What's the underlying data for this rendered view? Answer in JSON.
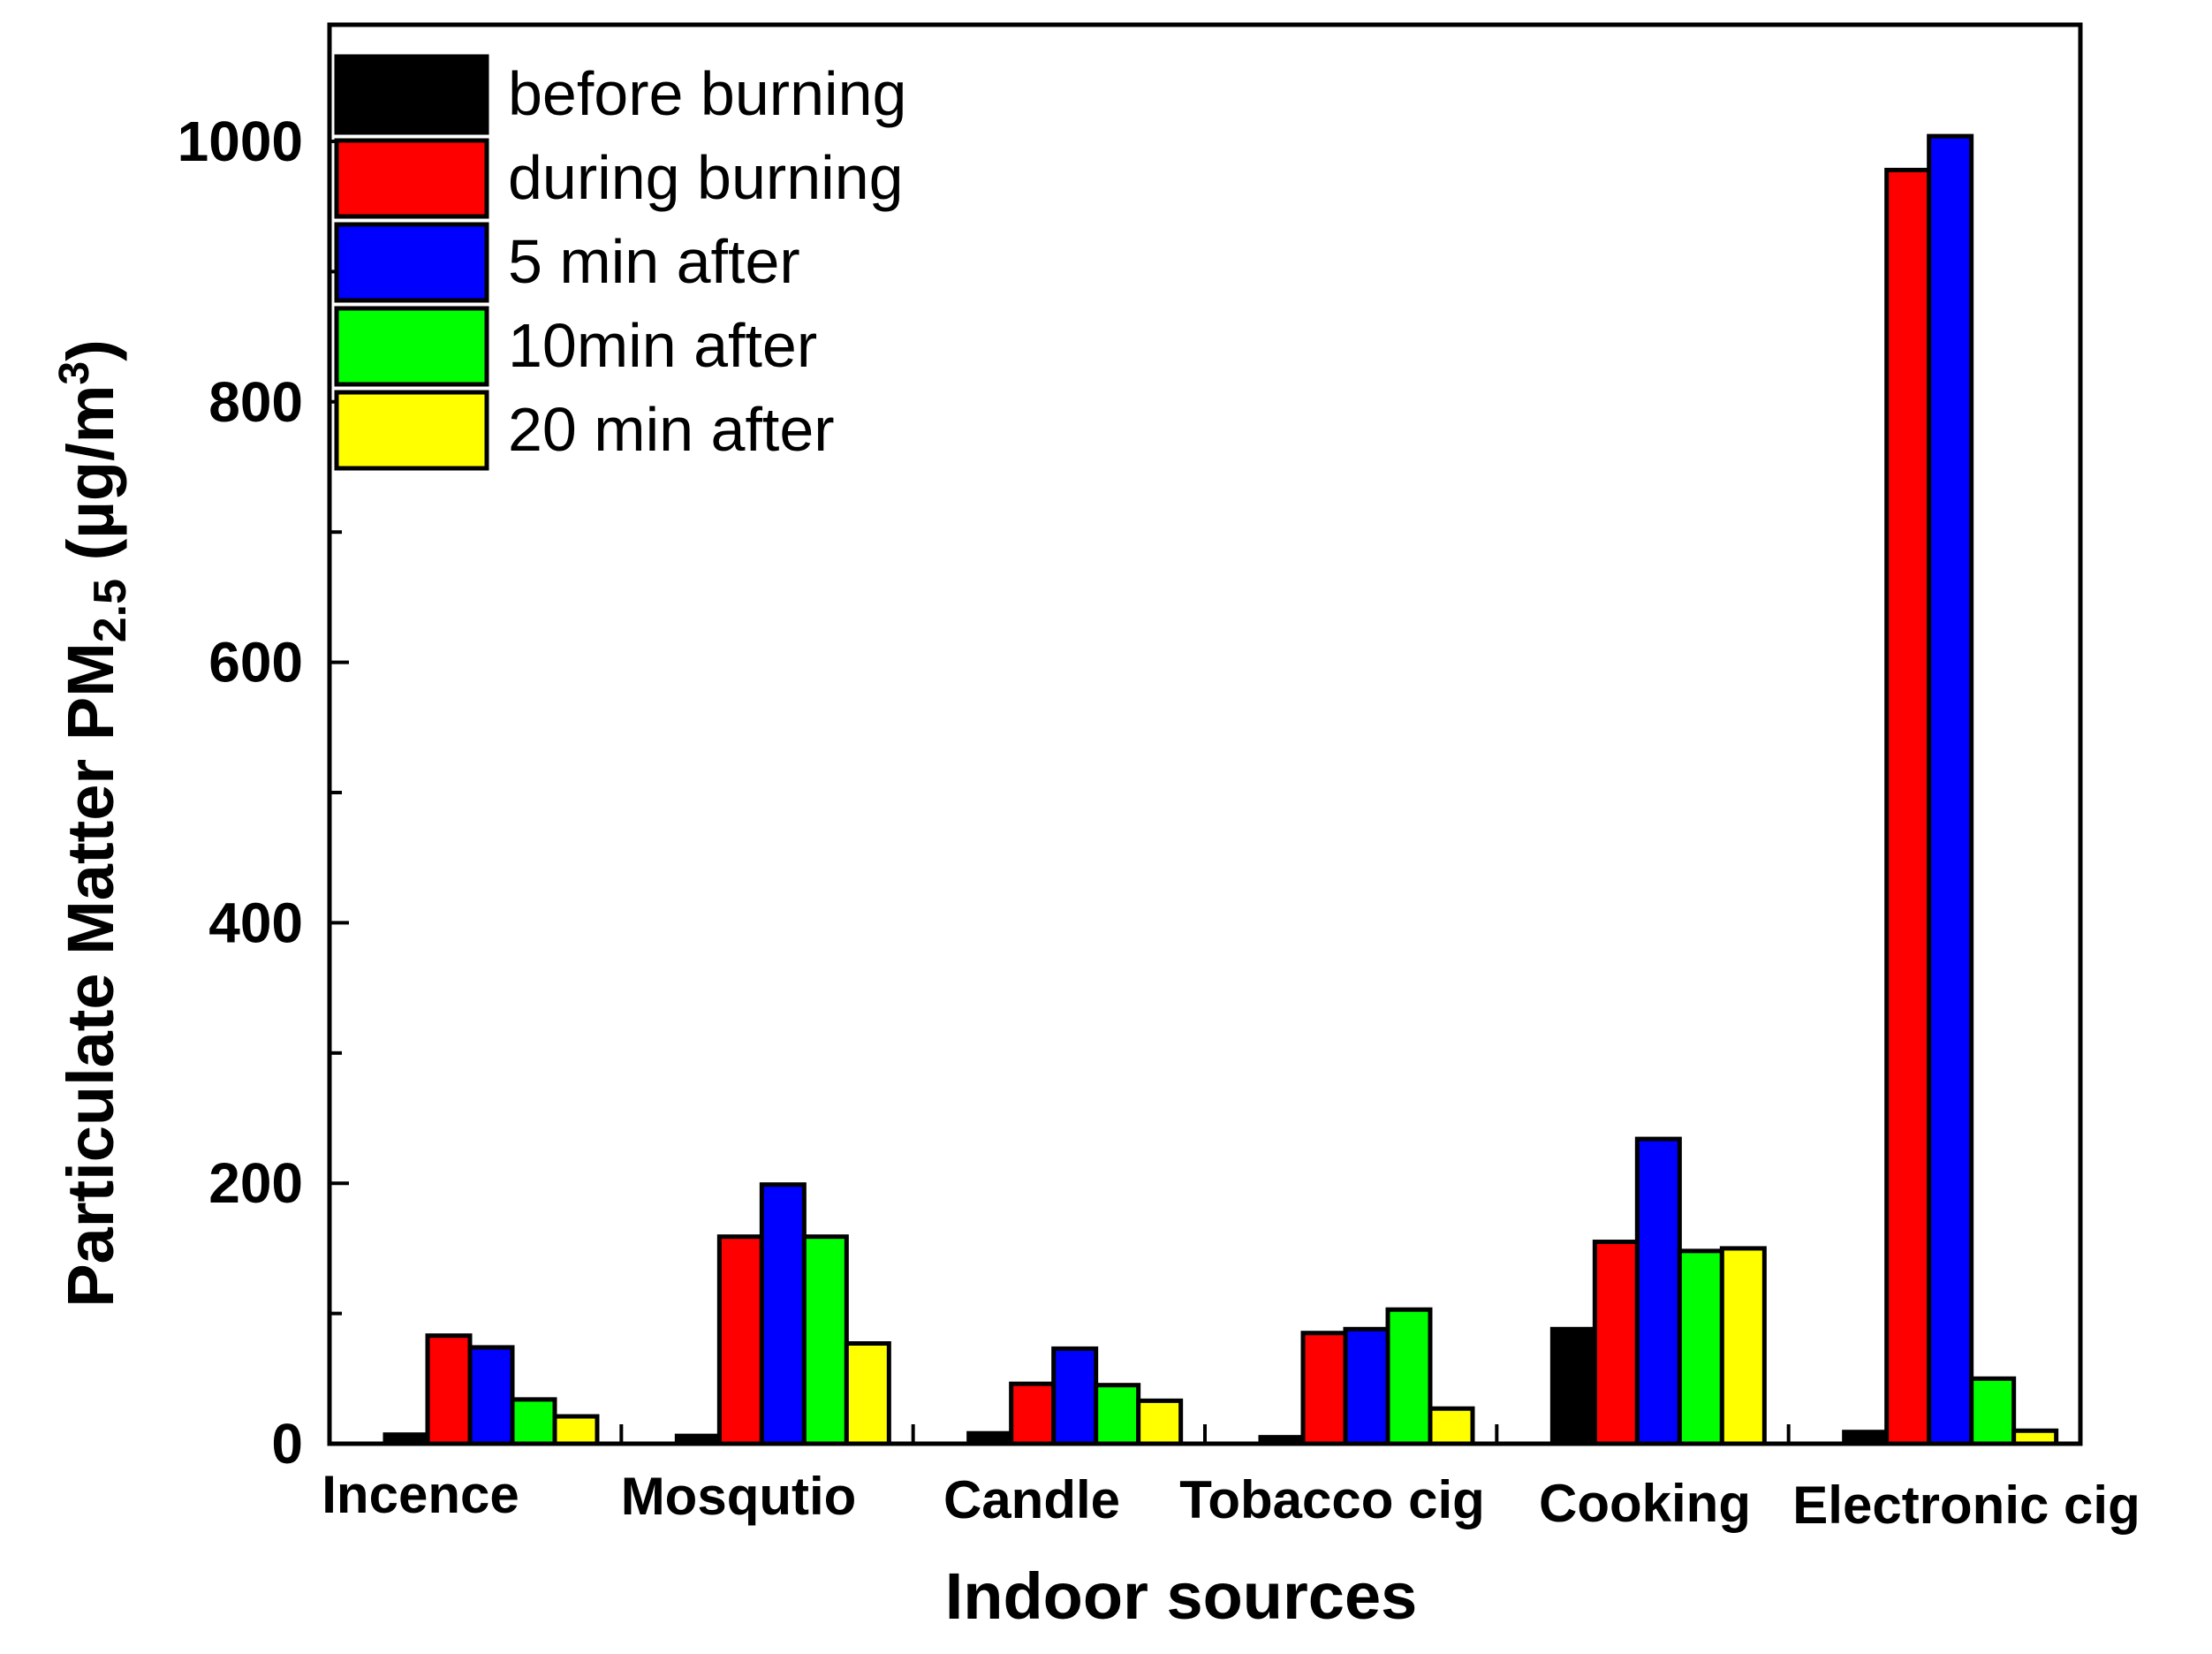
{
  "chart_data": {
    "type": "bar",
    "categories": [
      "Incence",
      "Mosqutio",
      "Candle",
      "Tobacco cig",
      "Cooking",
      "Electronic cig"
    ],
    "series": [
      {
        "name": "before burning",
        "color": "#000000",
        "values": [
          7,
          6,
          8,
          5,
          88,
          9
        ]
      },
      {
        "name": "during burning",
        "color": "#ff0000",
        "values": [
          83,
          159,
          46,
          85,
          155,
          978
        ]
      },
      {
        "name": "5 min after",
        "color": "#0000ff",
        "values": [
          74,
          199,
          73,
          88,
          234,
          1004
        ]
      },
      {
        "name": "10min after",
        "color": "#00ff00",
        "values": [
          34,
          159,
          45,
          103,
          148,
          50
        ]
      },
      {
        "name": "20 min after",
        "color": "#ffff00",
        "values": [
          21,
          77,
          33,
          27,
          150,
          10
        ]
      }
    ],
    "xlabel": "Indoor sources",
    "ylabel": {
      "main": "Particulate Matter PM",
      "subscript": "2.5",
      "unit": " (µg/m",
      "superscript": "3",
      "close": ")"
    },
    "ylim": [
      0,
      1090
    ],
    "yticks": [
      0,
      200,
      400,
      600,
      800,
      1000
    ],
    "legend_position": "top-left"
  }
}
